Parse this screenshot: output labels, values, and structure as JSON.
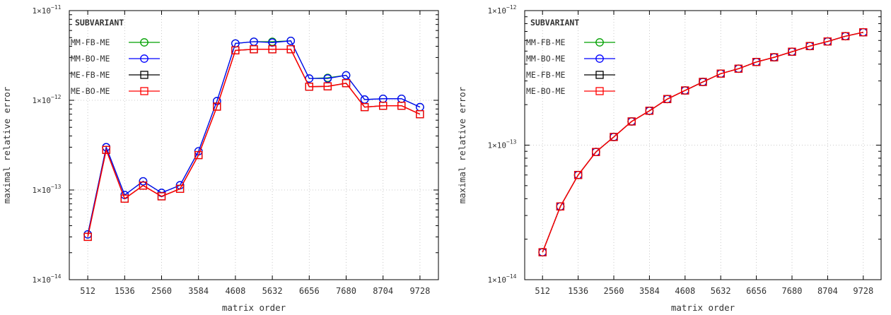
{
  "chart_data": [
    {
      "type": "line",
      "xlabel": "matrix order",
      "ylabel": "maximal relative error",
      "yscale": "log",
      "ylim": [
        1e-14,
        1e-11
      ],
      "xlim": [
        0,
        10240
      ],
      "xticks": [
        512,
        1536,
        2560,
        3584,
        4608,
        5632,
        6656,
        7680,
        8704,
        9728
      ],
      "yticks": [
        {
          "value": 1e-14,
          "base": "1×10",
          "exp": "−14"
        },
        {
          "value": 1e-13,
          "base": "1×10",
          "exp": "−13"
        },
        {
          "value": 1e-12,
          "base": "1×10",
          "exp": "−12"
        },
        {
          "value": 1e-11,
          "base": "1×10",
          "exp": "−11"
        }
      ],
      "grid": true,
      "legend": {
        "title": "SUBVARIANT",
        "position": "top-left"
      },
      "x": [
        512,
        1024,
        1536,
        2048,
        2560,
        3072,
        3584,
        4096,
        4608,
        5120,
        5632,
        6144,
        6656,
        7168,
        7680,
        8192,
        8704,
        9216,
        9728
      ],
      "series": [
        {
          "name": "MM-FB-ME",
          "color": "#00a000",
          "marker": "circle",
          "values": [
            3.2e-14,
            3e-13,
            8.8e-14,
            1.25e-13,
            9.3e-14,
            1.13e-13,
            2.7e-13,
            9.8e-13,
            4.3e-12,
            4.5e-12,
            4.5e-12,
            4.6e-12,
            1.75e-12,
            1.78e-12,
            1.9e-12,
            1.02e-12,
            1.04e-12,
            1.04e-12,
            8.4e-13
          ]
        },
        {
          "name": "MM-BO-ME",
          "color": "#0000ff",
          "marker": "circle",
          "values": [
            3.2e-14,
            3e-13,
            8.8e-14,
            1.25e-13,
            9.3e-14,
            1.13e-13,
            2.7e-13,
            9.8e-13,
            4.3e-12,
            4.5e-12,
            4.4e-12,
            4.6e-12,
            1.75e-12,
            1.75e-12,
            1.9e-12,
            1.02e-12,
            1.04e-12,
            1.04e-12,
            8.4e-13
          ]
        },
        {
          "name": "ME-FB-ME",
          "color": "#000000",
          "marker": "square",
          "values": [
            3e-14,
            2.8e-13,
            8e-14,
            1.12e-13,
            8.5e-14,
            1.03e-13,
            2.45e-13,
            8.5e-13,
            3.6e-12,
            3.7e-12,
            3.7e-12,
            3.7e-12,
            1.42e-12,
            1.43e-12,
            1.55e-12,
            8.4e-13,
            8.7e-13,
            8.7e-13,
            7e-13
          ]
        },
        {
          "name": "ME-BO-ME",
          "color": "#ff0000",
          "marker": "square",
          "values": [
            3e-14,
            2.8e-13,
            8e-14,
            1.12e-13,
            8.5e-14,
            1.03e-13,
            2.45e-13,
            8.5e-13,
            3.6e-12,
            3.7e-12,
            3.7e-12,
            3.7e-12,
            1.42e-12,
            1.43e-12,
            1.55e-12,
            8.4e-13,
            8.7e-13,
            8.7e-13,
            7e-13
          ]
        }
      ]
    },
    {
      "type": "line",
      "xlabel": "matrix order",
      "ylabel": "maximal relative error",
      "yscale": "log",
      "ylim": [
        1e-14,
        1e-12
      ],
      "xlim": [
        0,
        10240
      ],
      "xticks": [
        512,
        1536,
        2560,
        3584,
        4608,
        5632,
        6656,
        7680,
        8704,
        9728
      ],
      "yticks": [
        {
          "value": 1e-14,
          "base": "1×10",
          "exp": "−14"
        },
        {
          "value": 1e-13,
          "base": "1×10",
          "exp": "−13"
        },
        {
          "value": 1e-12,
          "base": "1×10",
          "exp": "−12"
        }
      ],
      "grid": true,
      "legend": {
        "title": "SUBVARIANT",
        "position": "top-left"
      },
      "x": [
        512,
        1024,
        1536,
        2048,
        2560,
        3072,
        3584,
        4096,
        4608,
        5120,
        5632,
        6144,
        6656,
        7168,
        7680,
        8192,
        8704,
        9216,
        9728
      ],
      "series": [
        {
          "name": "MM-FB-ME",
          "color": "#00a000",
          "marker": "circle",
          "values": [
            1.6e-14,
            3.5e-14,
            6e-14,
            8.9e-14,
            1.15e-13,
            1.5e-13,
            1.8e-13,
            2.2e-13,
            2.55e-13,
            2.95e-13,
            3.4e-13,
            3.7e-13,
            4.15e-13,
            4.5e-13,
            4.95e-13,
            5.45e-13,
            5.9e-13,
            6.45e-13,
            6.9e-13
          ]
        },
        {
          "name": "MM-BO-ME",
          "color": "#0000ff",
          "marker": "circle",
          "values": [
            1.6e-14,
            3.5e-14,
            6e-14,
            8.9e-14,
            1.15e-13,
            1.5e-13,
            1.8e-13,
            2.2e-13,
            2.55e-13,
            2.95e-13,
            3.4e-13,
            3.7e-13,
            4.15e-13,
            4.5e-13,
            4.95e-13,
            5.45e-13,
            5.9e-13,
            6.45e-13,
            6.9e-13
          ]
        },
        {
          "name": "ME-FB-ME",
          "color": "#000000",
          "marker": "square",
          "values": [
            1.6e-14,
            3.5e-14,
            6e-14,
            8.9e-14,
            1.15e-13,
            1.5e-13,
            1.8e-13,
            2.2e-13,
            2.55e-13,
            2.95e-13,
            3.4e-13,
            3.7e-13,
            4.15e-13,
            4.5e-13,
            4.95e-13,
            5.45e-13,
            5.9e-13,
            6.45e-13,
            6.9e-13
          ]
        },
        {
          "name": "ME-BO-ME",
          "color": "#ff0000",
          "marker": "square",
          "values": [
            1.6e-14,
            3.5e-14,
            6e-14,
            8.9e-14,
            1.15e-13,
            1.5e-13,
            1.8e-13,
            2.2e-13,
            2.55e-13,
            2.95e-13,
            3.4e-13,
            3.7e-13,
            4.15e-13,
            4.5e-13,
            4.95e-13,
            5.45e-13,
            5.9e-13,
            6.45e-13,
            6.9e-13
          ]
        }
      ]
    }
  ]
}
